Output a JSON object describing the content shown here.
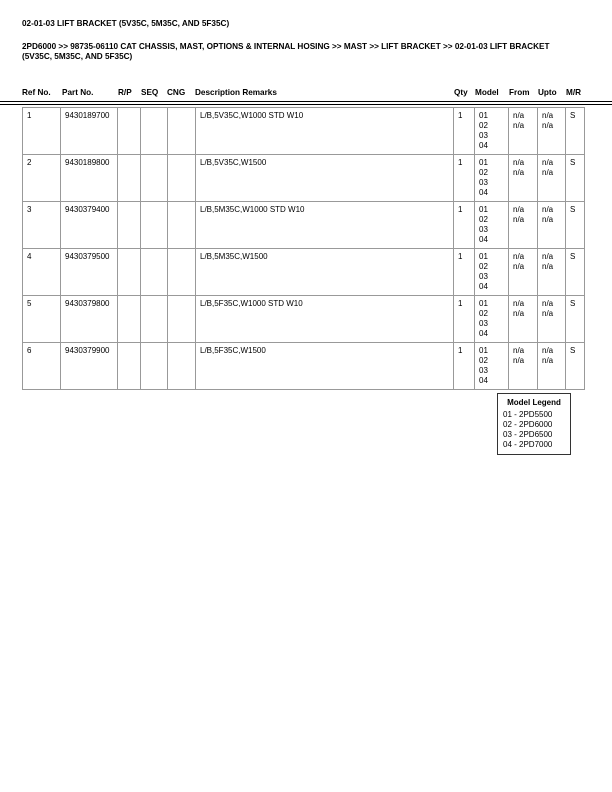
{
  "title": "02-01-03 LIFT BRACKET (5V35C, 5M35C, AND 5F35C)",
  "breadcrumb": "2PD6000 >> 98735-06110 CAT CHASSIS, MAST, OPTIONS & INTERNAL HOSING >> MAST >> LIFT BRACKET >> 02-01-03 LIFT BRACKET (5V35C, 5M35C, AND 5F35C)",
  "columns": [
    "Ref No.",
    "Part No.",
    "R/P",
    "SEQ",
    "CNG",
    "Description Remarks",
    "Qty",
    "Model",
    "From",
    "Upto",
    "M/R"
  ],
  "rows": [
    {
      "ref": "1",
      "part": "9430189700",
      "rp": "",
      "seq": "",
      "cng": "",
      "desc": "L/B,5V35C,W1000 STD  W10",
      "qty": "1",
      "model": [
        "01",
        "02",
        "03",
        "04"
      ],
      "from": [
        "n/a",
        "n/a"
      ],
      "upto": [
        "n/a",
        "n/a"
      ],
      "mr": "S"
    },
    {
      "ref": "2",
      "part": "9430189800",
      "rp": "",
      "seq": "",
      "cng": "",
      "desc": "L/B,5V35C,W1500",
      "qty": "1",
      "model": [
        "01",
        "02",
        "03",
        "04"
      ],
      "from": [
        "n/a",
        "n/a"
      ],
      "upto": [
        "n/a",
        "n/a"
      ],
      "mr": "S"
    },
    {
      "ref": "3",
      "part": "9430379400",
      "rp": "",
      "seq": "",
      "cng": "",
      "desc": "L/B,5M35C,W1000 STD  W10",
      "qty": "1",
      "model": [
        "01",
        "02",
        "03",
        "04"
      ],
      "from": [
        "n/a",
        "n/a"
      ],
      "upto": [
        "n/a",
        "n/a"
      ],
      "mr": "S"
    },
    {
      "ref": "4",
      "part": "9430379500",
      "rp": "",
      "seq": "",
      "cng": "",
      "desc": "L/B,5M35C,W1500",
      "qty": "1",
      "model": [
        "01",
        "02",
        "03",
        "04"
      ],
      "from": [
        "n/a",
        "n/a"
      ],
      "upto": [
        "n/a",
        "n/a"
      ],
      "mr": "S"
    },
    {
      "ref": "5",
      "part": "9430379800",
      "rp": "",
      "seq": "",
      "cng": "",
      "desc": "L/B,5F35C,W1000 STD  W10",
      "qty": "1",
      "model": [
        "01",
        "02",
        "03",
        "04"
      ],
      "from": [
        "n/a",
        "n/a"
      ],
      "upto": [
        "n/a",
        "n/a"
      ],
      "mr": "S"
    },
    {
      "ref": "6",
      "part": "9430379900",
      "rp": "",
      "seq": "",
      "cng": "",
      "desc": "L/B,5F35C,W1500",
      "qty": "1",
      "model": [
        "01",
        "02",
        "03",
        "04"
      ],
      "from": [
        "n/a",
        "n/a"
      ],
      "upto": [
        "n/a",
        "n/a"
      ],
      "mr": "S"
    }
  ],
  "legend": {
    "title": "Model Legend",
    "items": [
      "01 - 2PD5500",
      "02 - 2PD6000",
      "03 - 2PD6500",
      "04 - 2PD7000"
    ]
  }
}
